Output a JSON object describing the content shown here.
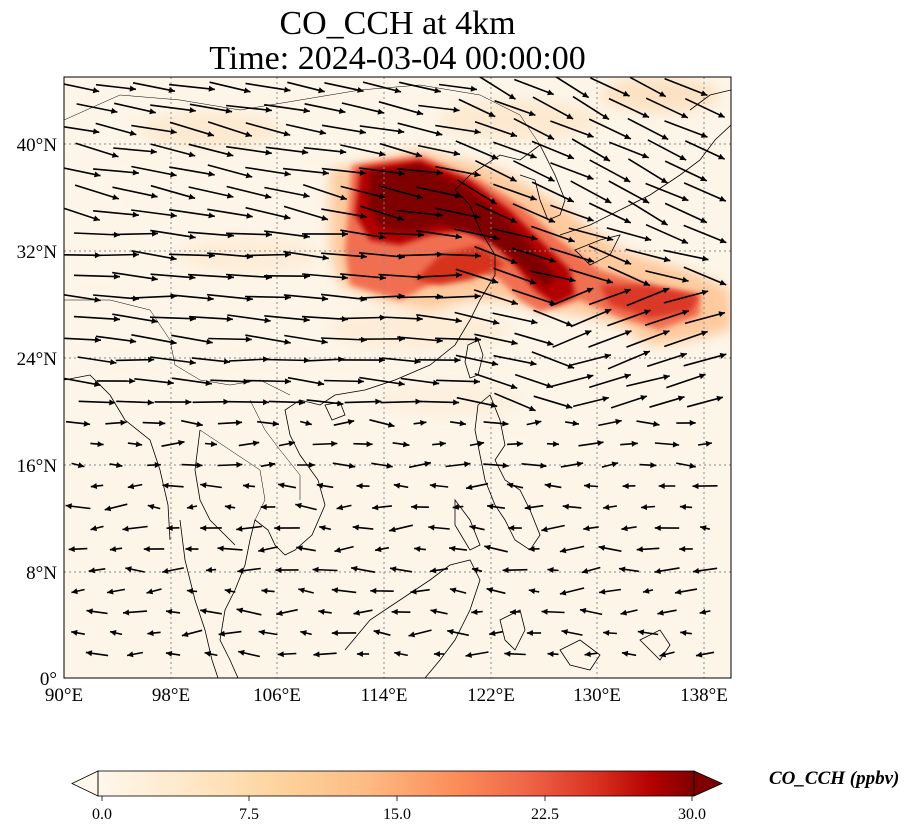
{
  "figure": {
    "title_line1": "CO_CCH at 4km",
    "title_line2": "Time: 2024-03-04 00:00:00"
  },
  "chart_data": {
    "type": "heatmap",
    "variable": "CO_CCH",
    "level": "4km",
    "time": "2024-03-04 00:00:00",
    "x_range_lon": [
      90,
      140
    ],
    "y_range_lat": [
      0,
      45
    ],
    "x_ticks": [
      "90°E",
      "98°E",
      "106°E",
      "114°E",
      "122°E",
      "130°E",
      "138°E"
    ],
    "x_tick_values": [
      90,
      98,
      106,
      114,
      122,
      130,
      138
    ],
    "y_ticks": [
      "0°",
      "8°N",
      "16°N",
      "24°N",
      "32°N",
      "40°N"
    ],
    "y_tick_values": [
      0,
      8,
      16,
      24,
      32,
      40
    ],
    "grid": true,
    "grid_style": "dotted",
    "colormap": "OrRd",
    "colorbar": {
      "label": "CO_CCH (ppbv)",
      "min": 0.0,
      "max": 30.0,
      "ticks": [
        "0.0",
        "7.5",
        "15.0",
        "22.5",
        "30.0"
      ],
      "tick_values": [
        0,
        7.5,
        15,
        22.5,
        30
      ],
      "extend": "both",
      "orientation": "horizontal"
    },
    "plume_core": [
      {
        "lon": 114.0,
        "lat": 37.5,
        "value": 30
      },
      {
        "lon": 116.5,
        "lat": 36.5,
        "value": 30
      },
      {
        "lon": 119.0,
        "lat": 36.0,
        "value": 30
      },
      {
        "lon": 121.0,
        "lat": 35.0,
        "value": 30
      },
      {
        "lon": 123.0,
        "lat": 33.0,
        "value": 28
      },
      {
        "lon": 124.5,
        "lat": 31.0,
        "value": 26
      },
      {
        "lon": 125.5,
        "lat": 29.5,
        "value": 22
      },
      {
        "lon": 116.0,
        "lat": 33.0,
        "value": 24
      },
      {
        "lon": 118.5,
        "lat": 31.0,
        "value": 20
      },
      {
        "lon": 128.5,
        "lat": 29.5,
        "value": 18
      },
      {
        "lon": 133.0,
        "lat": 28.0,
        "value": 16
      },
      {
        "lon": 134.0,
        "lat": 26.5,
        "value": 12
      },
      {
        "lon": 112.5,
        "lat": 30.5,
        "value": 14
      }
    ],
    "wind_vectors_note": "",
    "legend_position": "bottom"
  },
  "colors": {
    "background": "#fdf6e9",
    "low": "#fff7ec",
    "high": "#7f0000",
    "coast": "#000000",
    "grid": "#8a8a8a"
  }
}
